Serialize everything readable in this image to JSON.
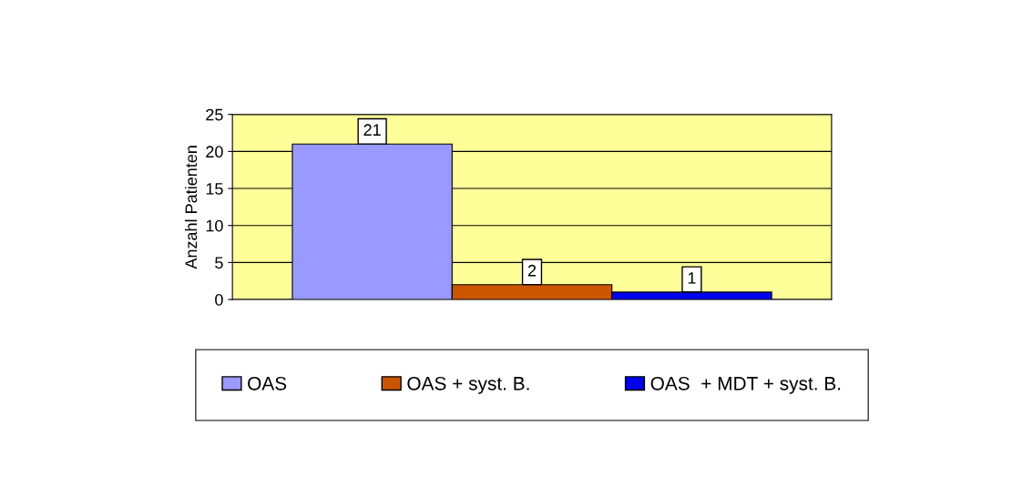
{
  "chart_data": {
    "type": "bar",
    "categories": [
      null
    ],
    "ylabel": "Anzahl Patienten",
    "series": [
      {
        "name": "OAS",
        "color": "#9999ff",
        "values": [
          21
        ]
      },
      {
        "name": "OAS + syst. B.",
        "color": "#cc5500",
        "values": [
          2
        ]
      },
      {
        "name": "OAS  + MDT + syst. B.",
        "color": "#0000ee",
        "values": [
          1
        ]
      }
    ],
    "ylim": [
      0,
      25
    ],
    "yticks": [
      0,
      5,
      10,
      15,
      20,
      25
    ],
    "grid": "y",
    "legend": "bottom",
    "data_labels": true
  }
}
